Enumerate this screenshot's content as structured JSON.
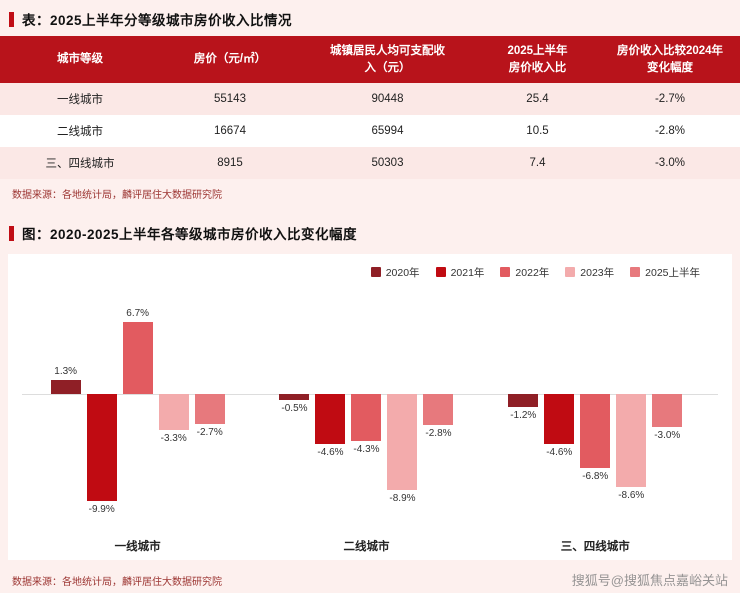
{
  "page": {
    "table_title": "表：2025上半年分等级城市房价收入比情况",
    "chart_title": "图：2020-2025上半年各等级城市房价收入比变化幅度",
    "source_note_table": "数据来源：各地统计局，麟评居住大数据研究院",
    "source_note_chart": "数据来源：各地统计局，麟评居住大数据研究院",
    "watermark": "搜狐号@搜狐焦点嘉峪关站"
  },
  "table": {
    "headers": [
      "城市等级",
      "房价（元/㎡）",
      "城镇居民人均可支配收\n入（元）",
      "2025上半年\n房价收入比",
      "房价收入比较2024年\n变化幅度"
    ],
    "rows": [
      [
        "一线城市",
        "55143",
        "90448",
        "25.4",
        "-2.7%"
      ],
      [
        "二线城市",
        "16674",
        "65994",
        "10.5",
        "-2.8%"
      ],
      [
        "三、四线城市",
        "8915",
        "50303",
        "7.4",
        "-3.0%"
      ]
    ]
  },
  "chart_data": {
    "type": "bar",
    "title": "图：2020-2025上半年各等级城市房价收入比变化幅度",
    "categories": [
      "一线城市",
      "二线城市",
      "三、四线城市"
    ],
    "series": [
      {
        "name": "2020年",
        "color": "#8f1f26",
        "values": [
          1.3,
          -0.5,
          -1.2
        ]
      },
      {
        "name": "2021年",
        "color": "#c00b12",
        "values": [
          -9.9,
          -4.6,
          -4.6
        ]
      },
      {
        "name": "2022年",
        "color": "#e25b60",
        "values": [
          6.7,
          -4.3,
          -6.8
        ]
      },
      {
        "name": "2023年",
        "color": "#f3abac",
        "values": [
          -3.3,
          -8.9,
          -8.6
        ]
      },
      {
        "name": "2025上半年",
        "color": "#e7797d",
        "values": [
          -2.7,
          -2.8,
          -3.0
        ]
      }
    ],
    "unit": "%",
    "ylim": [
      -11,
      8
    ],
    "legend_position": "top-right",
    "grid": false,
    "zero_baseline": true
  },
  "colors": {
    "accent_red": "#c00d15",
    "table_header_bg": "#b8131b",
    "row_pink": "#fbe8e6",
    "page_bg": "#fdf0ee",
    "source_text": "#9c3532"
  }
}
